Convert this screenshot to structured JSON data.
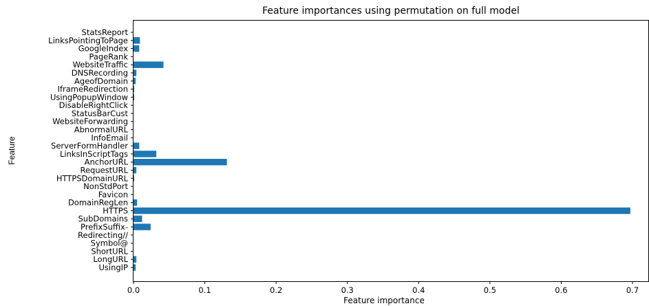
{
  "chart_data": {
    "type": "bar",
    "orientation": "horizontal",
    "title": "Feature importances using permutation on full model",
    "xlabel": "Feature importance",
    "ylabel": "Feature",
    "xlim": [
      0,
      0.72
    ],
    "xticks": [
      0.0,
      0.1,
      0.2,
      0.3,
      0.4,
      0.5,
      0.6,
      0.7
    ],
    "xtick_labels": [
      "0.0",
      "0.1",
      "0.2",
      "0.3",
      "0.4",
      "0.5",
      "0.6",
      "0.7"
    ],
    "bar_color": "#1f77b4",
    "grid": false,
    "categories": [
      "UsingIP",
      "LongURL",
      "ShortURL",
      "Symbol@",
      "Redirecting//",
      "PrefixSuffix-",
      "SubDomains",
      "HTTPS",
      "DomainRegLen",
      "Favicon",
      "NonStdPort",
      "HTTPSDomainURL",
      "RequestURL",
      "AnchorURL",
      "LinksInScriptTags",
      "ServerFormHandler",
      "InfoEmail",
      "AbnormalURL",
      "WebsiteForwarding",
      "StatusBarCust",
      "DisableRightClick",
      "UsingPopupWindow",
      "IframeRedirection",
      "AgeofDomain",
      "DNSRecording",
      "WebsiteTraffic",
      "PageRank",
      "GoogleIndex",
      "LinksPointingToPage",
      "StatsReport"
    ],
    "values": [
      0.003,
      0.004,
      0.0,
      0.0,
      0.0,
      0.024,
      0.012,
      0.697,
      0.005,
      0.0,
      0.0,
      0.001,
      0.004,
      0.131,
      0.032,
      0.008,
      0.0,
      0.0,
      0.0,
      0.0,
      0.0,
      0.001,
      0.001,
      0.003,
      0.004,
      0.042,
      0.0,
      0.008,
      0.009,
      0.0
    ]
  }
}
